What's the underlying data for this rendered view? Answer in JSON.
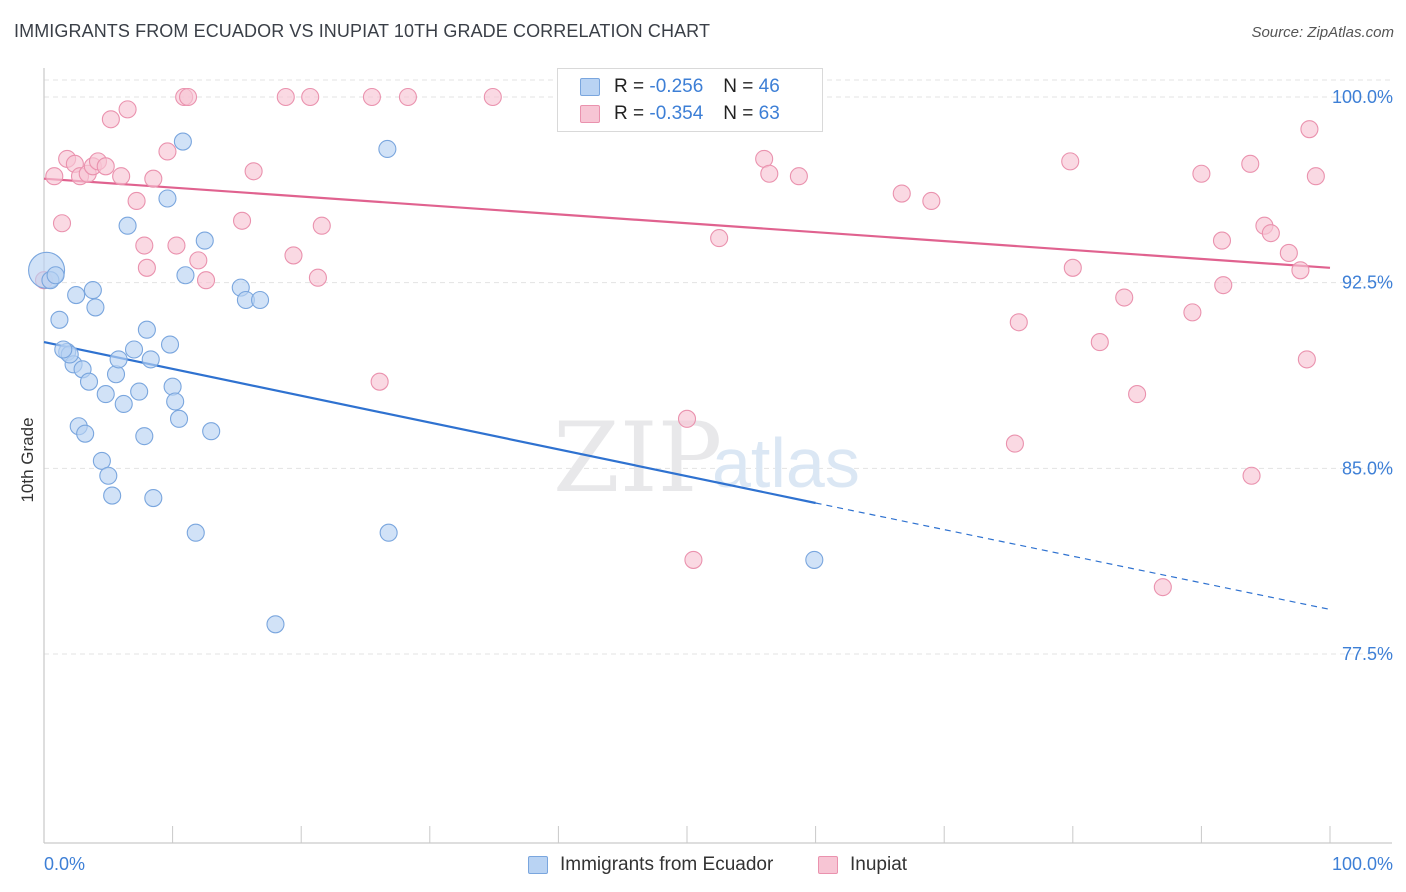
{
  "title": "IMMIGRANTS FROM ECUADOR VS INUPIAT 10TH GRADE CORRELATION CHART",
  "source": "Source: ZipAtlas.com",
  "watermark": {
    "zip": "ZIP",
    "atlas": "atlas"
  },
  "legend": {
    "series": [
      {
        "r_label": "R =",
        "r_value": "-0.256",
        "n_label": "N =",
        "n_value": "46"
      },
      {
        "r_label": "R =",
        "r_value": "-0.354",
        "n_label": "N =",
        "n_value": "63"
      }
    ]
  },
  "bottom_legend": [
    "Immigrants from Ecuador",
    "Inupiat"
  ],
  "colors": {
    "blue_fill": "#b9d3f3",
    "blue_stroke": "#7aa6de",
    "blue_line": "#2f72d0",
    "pink_fill": "#f7c5d4",
    "pink_stroke": "#ea92ae",
    "pink_line": "#e0628f",
    "tick_label": "#3d7fd6",
    "grid": "#e3e3e3"
  },
  "chart_data": {
    "type": "scatter",
    "title": "IMMIGRANTS FROM ECUADOR VS INUPIAT 10TH GRADE CORRELATION CHART",
    "xlabel": "",
    "ylabel": "10th Grade",
    "xlim": [
      0,
      100
    ],
    "ylim": [
      70.2,
      101.7
    ],
    "x_tick_labels": [
      "0.0%",
      "100.0%"
    ],
    "y_ticks": [
      100.0,
      92.5,
      85.0,
      77.5
    ],
    "y_tick_labels": [
      "100.0%",
      "92.5%",
      "85.0%",
      "77.5%"
    ],
    "grid": true,
    "legend_position": "top-center",
    "series": [
      {
        "name": "Immigrants from Ecuador",
        "r": -0.256,
        "n": 46,
        "trend": {
          "x0": 0,
          "y0": 90.1,
          "x1": 60,
          "y1": 83.6,
          "dash_to_x": 100,
          "dash_to_y": 79.3
        },
        "points": [
          [
            0.2,
            93.0
          ],
          [
            0.5,
            92.6
          ],
          [
            1.2,
            91.0
          ],
          [
            1.8,
            89.7
          ],
          [
            2.3,
            89.2
          ],
          [
            2.0,
            89.6
          ],
          [
            2.5,
            92.0
          ],
          [
            3.0,
            89.0
          ],
          [
            2.7,
            86.7
          ],
          [
            3.2,
            86.4
          ],
          [
            3.5,
            88.5
          ],
          [
            3.8,
            92.2
          ],
          [
            4.0,
            91.5
          ],
          [
            4.5,
            85.3
          ],
          [
            4.8,
            88.0
          ],
          [
            5.0,
            84.7
          ],
          [
            5.3,
            83.9
          ],
          [
            5.6,
            88.8
          ],
          [
            5.8,
            89.4
          ],
          [
            6.2,
            87.6
          ],
          [
            6.5,
            94.8
          ],
          [
            7.0,
            89.8
          ],
          [
            7.4,
            88.1
          ],
          [
            7.8,
            86.3
          ],
          [
            8.0,
            90.6
          ],
          [
            8.3,
            89.4
          ],
          [
            8.5,
            83.8
          ],
          [
            9.6,
            95.9
          ],
          [
            9.8,
            90.0
          ],
          [
            10.0,
            88.3
          ],
          [
            10.2,
            87.7
          ],
          [
            10.5,
            87.0
          ],
          [
            10.8,
            98.2
          ],
          [
            11.0,
            92.8
          ],
          [
            11.8,
            82.4
          ],
          [
            12.5,
            94.2
          ],
          [
            13.0,
            86.5
          ],
          [
            15.3,
            92.3
          ],
          [
            15.7,
            91.8
          ],
          [
            16.8,
            91.8
          ],
          [
            18.0,
            78.7
          ],
          [
            26.7,
            97.9
          ],
          [
            26.8,
            82.4
          ],
          [
            59.9,
            81.3
          ],
          [
            0.9,
            92.8
          ],
          [
            1.5,
            89.8
          ]
        ]
      },
      {
        "name": "Inupiat",
        "r": -0.354,
        "n": 63,
        "trend": {
          "x0": 0,
          "y0": 96.7,
          "x1": 100,
          "y1": 93.1
        },
        "points": [
          [
            0.0,
            92.6
          ],
          [
            0.8,
            96.8
          ],
          [
            1.4,
            94.9
          ],
          [
            1.8,
            97.5
          ],
          [
            2.4,
            97.3
          ],
          [
            2.8,
            96.8
          ],
          [
            3.4,
            96.9
          ],
          [
            3.8,
            97.2
          ],
          [
            4.2,
            97.4
          ],
          [
            4.8,
            97.2
          ],
          [
            5.2,
            99.1
          ],
          [
            6.0,
            96.8
          ],
          [
            6.5,
            99.5
          ],
          [
            7.2,
            95.8
          ],
          [
            7.8,
            94.0
          ],
          [
            8.0,
            93.1
          ],
          [
            8.5,
            96.7
          ],
          [
            9.6,
            97.8
          ],
          [
            10.3,
            94.0
          ],
          [
            10.9,
            100.0
          ],
          [
            11.2,
            100.0
          ],
          [
            12.0,
            93.4
          ],
          [
            12.6,
            92.6
          ],
          [
            15.4,
            95.0
          ],
          [
            16.3,
            97.0
          ],
          [
            18.8,
            100.0
          ],
          [
            19.4,
            93.6
          ],
          [
            20.7,
            100.0
          ],
          [
            21.3,
            92.7
          ],
          [
            21.6,
            94.8
          ],
          [
            25.5,
            100.0
          ],
          [
            26.1,
            88.5
          ],
          [
            28.3,
            100.0
          ],
          [
            34.9,
            100.0
          ],
          [
            50.0,
            87.0
          ],
          [
            50.5,
            81.3
          ],
          [
            52.5,
            94.3
          ],
          [
            56.0,
            97.5
          ],
          [
            56.4,
            96.9
          ],
          [
            58.7,
            96.8
          ],
          [
            66.7,
            96.1
          ],
          [
            69.0,
            95.8
          ],
          [
            75.5,
            86.0
          ],
          [
            75.8,
            90.9
          ],
          [
            79.8,
            97.4
          ],
          [
            80.0,
            93.1
          ],
          [
            82.1,
            90.1
          ],
          [
            84.0,
            91.9
          ],
          [
            85.0,
            88.0
          ],
          [
            87.0,
            80.2
          ],
          [
            89.3,
            91.3
          ],
          [
            90.0,
            96.9
          ],
          [
            91.6,
            94.2
          ],
          [
            91.7,
            92.4
          ],
          [
            93.8,
            97.3
          ],
          [
            93.9,
            84.7
          ],
          [
            94.9,
            94.8
          ],
          [
            95.4,
            94.5
          ],
          [
            96.8,
            93.7
          ],
          [
            97.7,
            93.0
          ],
          [
            98.2,
            89.4
          ],
          [
            98.4,
            98.7
          ],
          [
            98.9,
            96.8
          ]
        ]
      }
    ]
  }
}
